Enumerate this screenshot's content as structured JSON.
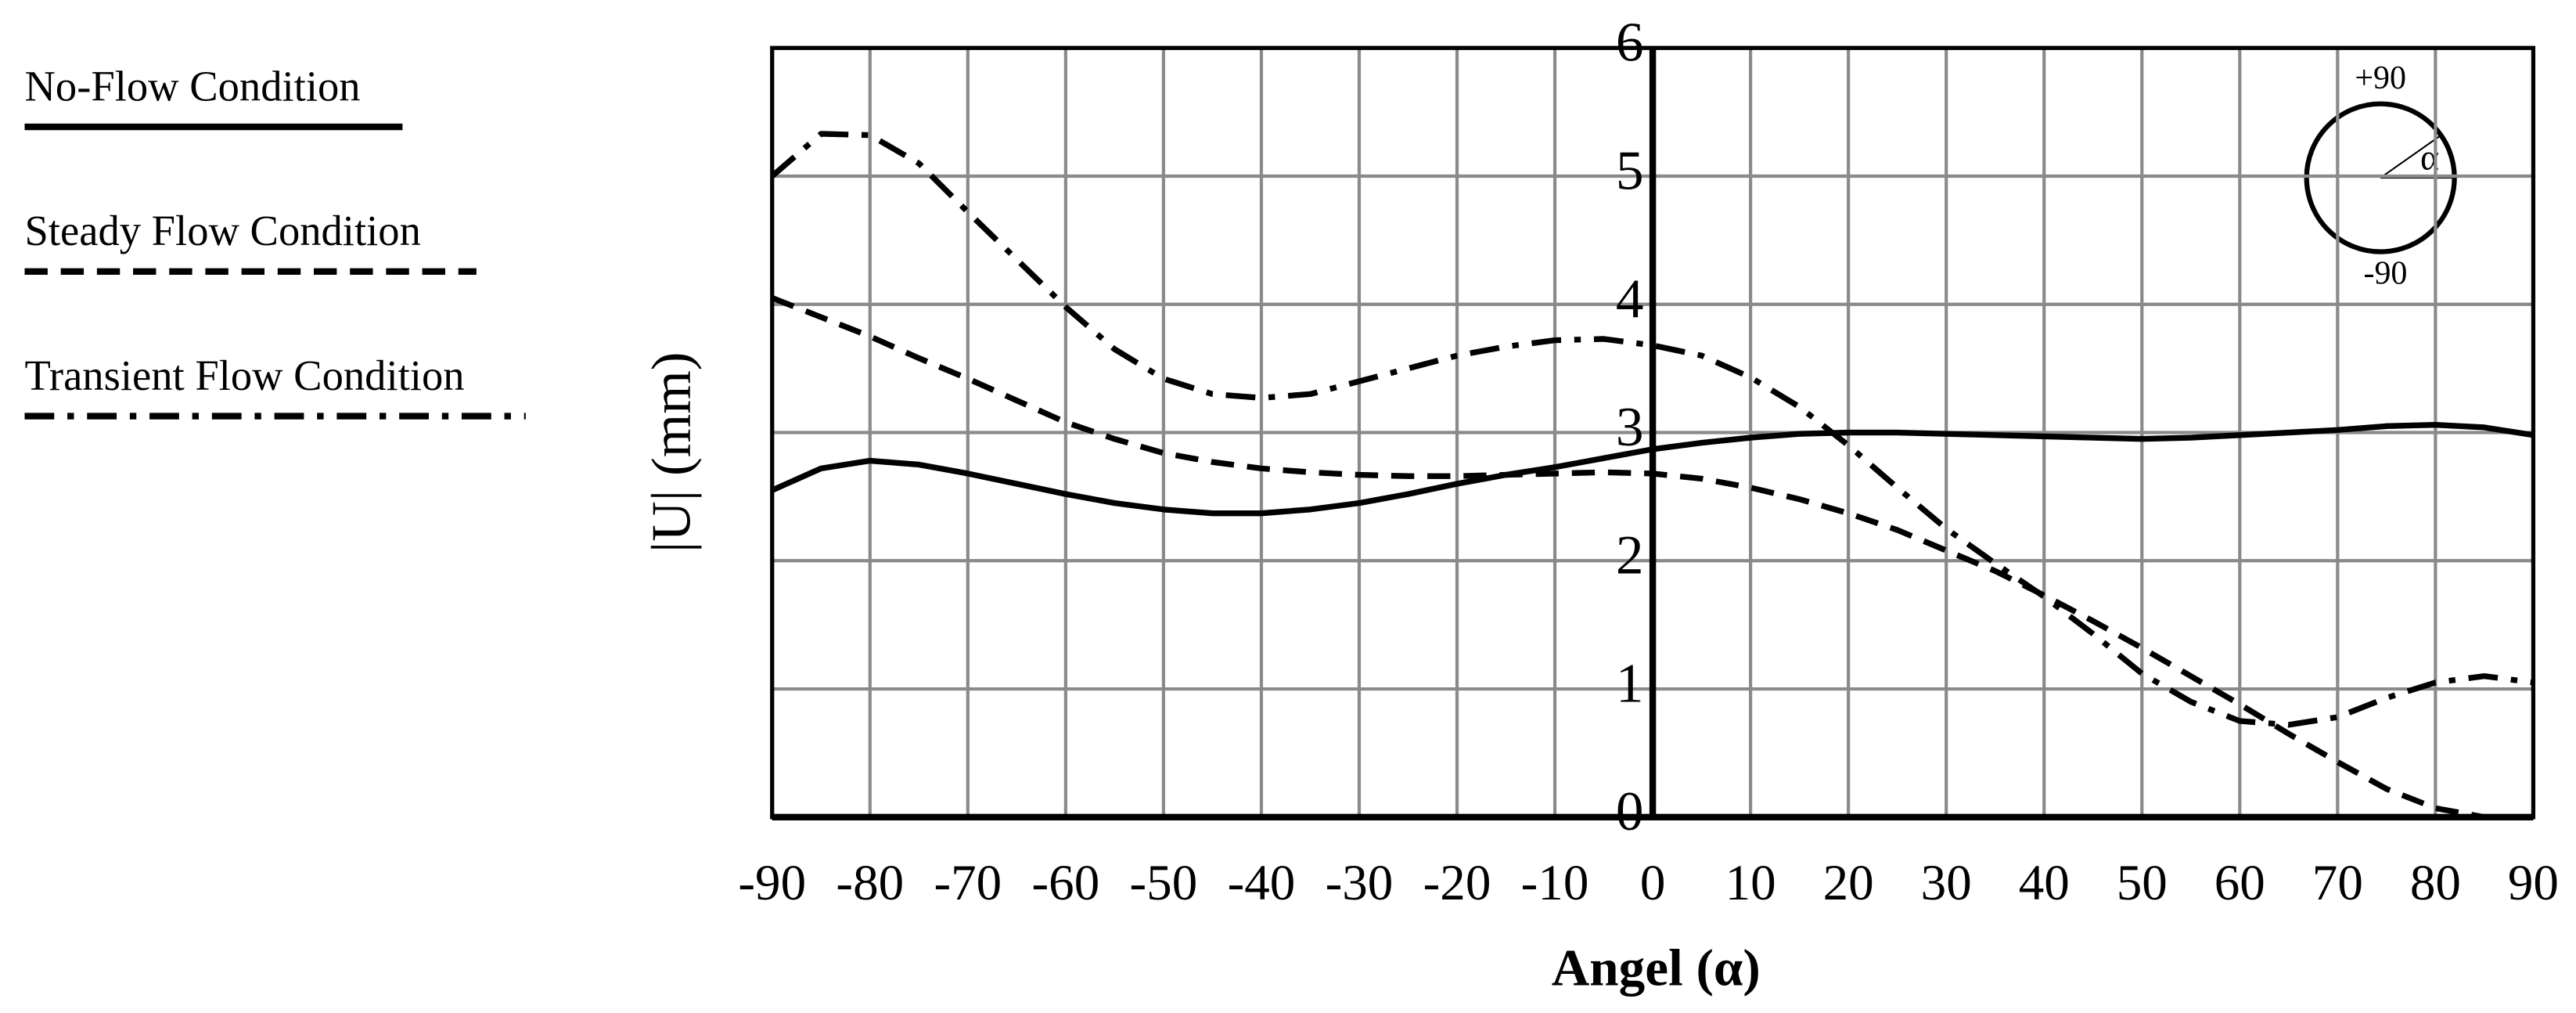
{
  "chart_data": {
    "type": "line",
    "xlabel": "Angel (α)",
    "ylabel": "|U| (mm)",
    "annotations": [
      "+90",
      "-90",
      "α"
    ],
    "x": [
      -90,
      -85,
      -80,
      -75,
      -70,
      -65,
      -60,
      -55,
      -50,
      -45,
      -40,
      -35,
      -30,
      -25,
      -20,
      -15,
      -10,
      -5,
      0,
      5,
      10,
      15,
      20,
      25,
      30,
      35,
      40,
      45,
      50,
      55,
      60,
      65,
      70,
      75,
      80,
      85,
      90
    ],
    "series": [
      {
        "name": "No-Flow Condition",
        "color": "#000000",
        "style": "solid",
        "values": [
          2.55,
          2.72,
          2.78,
          2.75,
          2.68,
          2.6,
          2.52,
          2.45,
          2.4,
          2.37,
          2.37,
          2.4,
          2.45,
          2.52,
          2.6,
          2.67,
          2.73,
          2.8,
          2.87,
          2.92,
          2.96,
          2.99,
          3.0,
          3.0,
          2.99,
          2.98,
          2.97,
          2.96,
          2.95,
          2.96,
          2.98,
          3.0,
          3.02,
          3.05,
          3.06,
          3.04,
          2.98
        ]
      },
      {
        "name": "Steady Flow Condition",
        "color": "#000000",
        "style": "dashed",
        "values": [
          4.05,
          3.9,
          3.75,
          3.58,
          3.42,
          3.25,
          3.08,
          2.95,
          2.84,
          2.77,
          2.72,
          2.69,
          2.67,
          2.66,
          2.66,
          2.67,
          2.68,
          2.69,
          2.68,
          2.64,
          2.57,
          2.48,
          2.37,
          2.24,
          2.08,
          1.92,
          1.73,
          1.53,
          1.32,
          1.1,
          0.88,
          0.65,
          0.43,
          0.22,
          0.07,
          0.0,
          null
        ]
      },
      {
        "name": "Transient Flow Condition",
        "color": "#000000",
        "style": "dashdot",
        "values": [
          5.0,
          5.33,
          5.32,
          5.1,
          4.72,
          4.35,
          3.98,
          3.65,
          3.42,
          3.3,
          3.27,
          3.3,
          3.4,
          3.5,
          3.6,
          3.67,
          3.72,
          3.73,
          3.68,
          3.6,
          3.43,
          3.2,
          2.9,
          2.57,
          2.25,
          1.98,
          1.72,
          1.43,
          1.12,
          0.9,
          0.75,
          0.72,
          0.78,
          0.93,
          1.05,
          1.1,
          1.05
        ]
      }
    ],
    "xlim": [
      -90,
      90
    ],
    "xticks": [
      -90,
      -80,
      -70,
      -60,
      -50,
      -40,
      -30,
      -20,
      -10,
      0,
      10,
      20,
      30,
      40,
      50,
      60,
      70,
      80,
      90
    ],
    "ylim": [
      0,
      6
    ],
    "yticks": [
      0,
      1,
      2,
      3,
      4,
      5,
      6
    ],
    "grid": true
  }
}
